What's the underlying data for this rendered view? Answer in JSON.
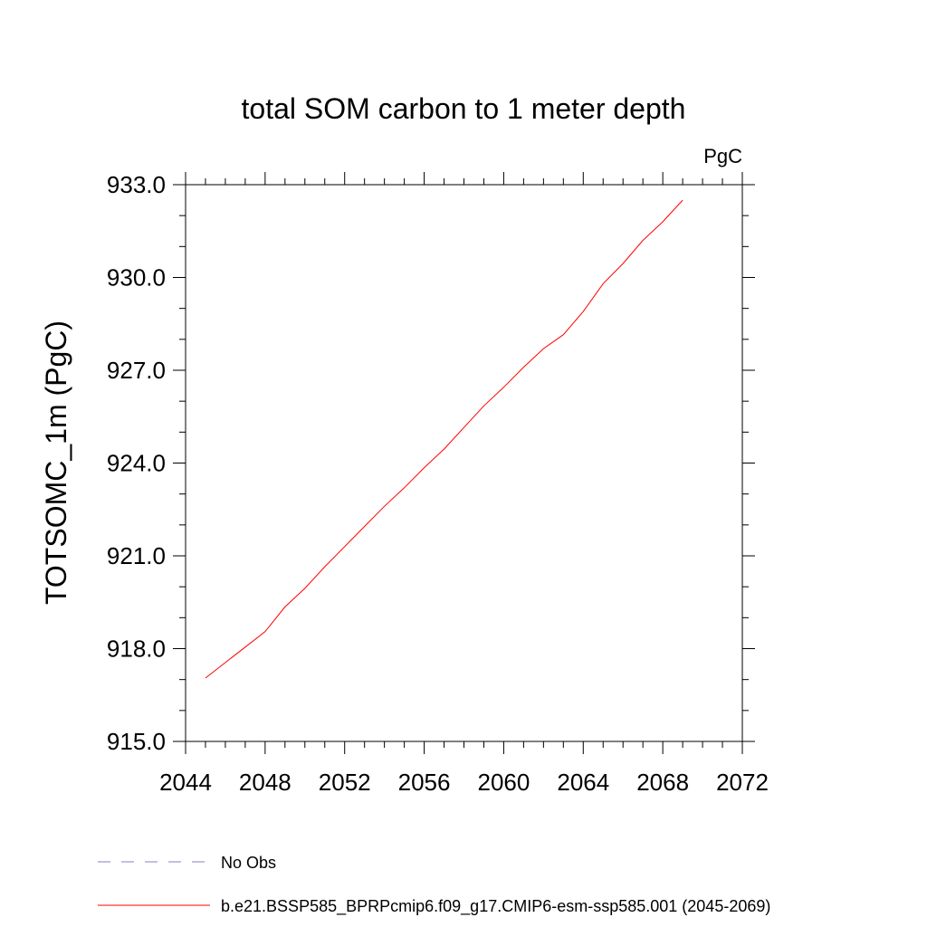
{
  "chart_data": {
    "type": "line",
    "title": "total SOM carbon to 1 meter depth",
    "units_label": "PgC",
    "xlabel": "",
    "ylabel": "TOTSOMC_1m  (PgC)",
    "xlim": [
      2044,
      2072
    ],
    "ylim": [
      915,
      933
    ],
    "xticks": [
      2044,
      2048,
      2052,
      2056,
      2060,
      2064,
      2068,
      2072
    ],
    "yticks": [
      915,
      918,
      921,
      924,
      927,
      930,
      933
    ],
    "xtick_labels": [
      "2044",
      "2048",
      "2052",
      "2056",
      "2060",
      "2064",
      "2068",
      "2072"
    ],
    "ytick_labels": [
      "915.0",
      "918.0",
      "921.0",
      "924.0",
      "927.0",
      "930.0",
      "933.0"
    ],
    "grid": false,
    "legend_position": "below-plot",
    "series": [
      {
        "name": "b.e21.BSSP585_BPRPcmip6.f09_g17.CMIP6-esm-ssp585.001 (2045-2069)",
        "color": "#ff0000",
        "style": "solid",
        "x": [
          2045,
          2046,
          2047,
          2048,
          2049,
          2050,
          2051,
          2052,
          2053,
          2054,
          2055,
          2056,
          2057,
          2058,
          2059,
          2060,
          2061,
          2062,
          2063,
          2064,
          2065,
          2066,
          2067,
          2068,
          2069
        ],
        "y": [
          917.05,
          917.55,
          918.05,
          918.55,
          919.35,
          919.95,
          920.65,
          921.3,
          921.95,
          922.6,
          923.2,
          923.85,
          924.45,
          925.15,
          925.85,
          926.45,
          927.1,
          927.7,
          928.15,
          928.9,
          929.8,
          930.45,
          931.2,
          931.8,
          932.5
        ]
      }
    ],
    "legend": [
      {
        "label": "No Obs",
        "color": "#8080c0",
        "style": "dashed"
      },
      {
        "label": "b.e21.BSSP585_BPRPcmip6.f09_g17.CMIP6-esm-ssp585.001 (2045-2069)",
        "color": "#ff0000",
        "style": "solid"
      }
    ]
  }
}
